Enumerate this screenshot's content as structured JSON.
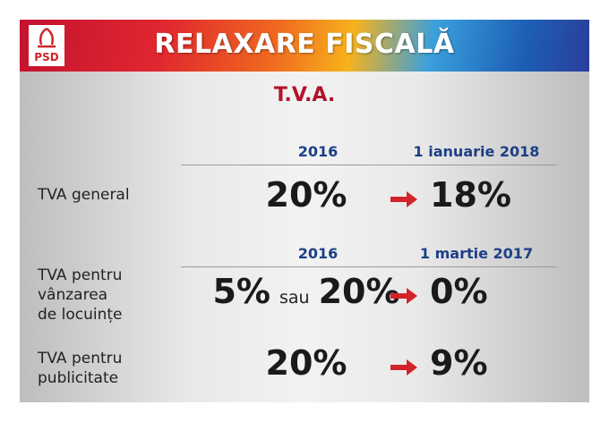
{
  "header": {
    "logo": "PSD",
    "title": "RELAXARE FISCALĂ"
  },
  "subtitle": "T.V.A.",
  "sections": [
    {
      "from_label": "2016",
      "to_label": "1 ianuarie 2018",
      "rows": [
        {
          "label": [
            "TVA general"
          ],
          "from": [
            "20%"
          ],
          "to": "18%"
        }
      ]
    },
    {
      "from_label": "2016",
      "to_label": "1 martie 2017",
      "rows": [
        {
          "label": [
            "TVA pentru",
            "vânzarea",
            "de locuințe"
          ],
          "from": [
            "5%",
            "sau",
            "20%"
          ],
          "to": "0%"
        },
        {
          "label": [
            "TVA pentru",
            "publicitate"
          ],
          "from": [
            "20%"
          ],
          "to": "9%"
        }
      ]
    }
  ]
}
